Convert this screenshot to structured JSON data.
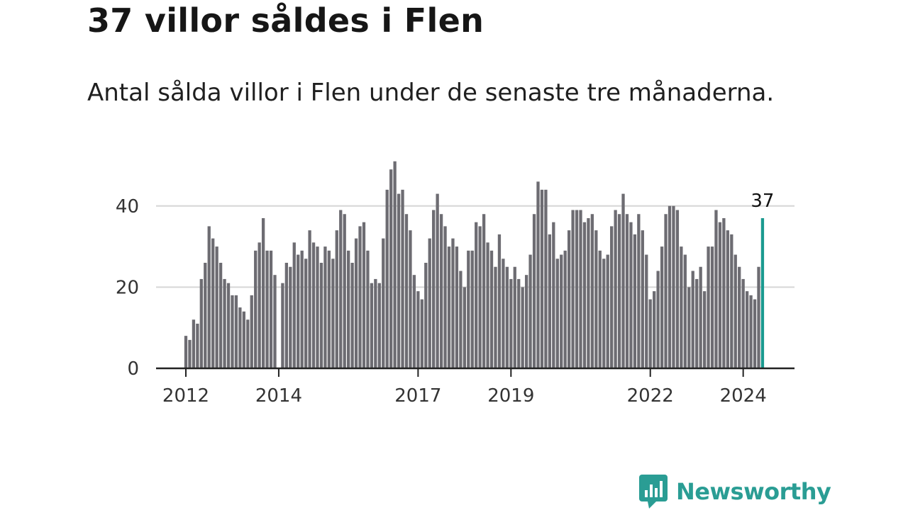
{
  "title": "37 villor såldes i Flen",
  "subtitle": "Antal sålda villor i Flen under de senaste tre månaderna.",
  "brand": {
    "name": "Newsworthy",
    "color": "#2a9d94"
  },
  "colors": {
    "bar": "#6d6c72",
    "highlight": "#1b9a90",
    "grid": "#d6d6d6",
    "axis": "#222222"
  },
  "chart_data": {
    "type": "bar",
    "title": "37 villor såldes i Flen",
    "xlabel": "",
    "ylabel": "",
    "ylim": [
      0,
      52
    ],
    "yticks": [
      0,
      20,
      40
    ],
    "grid": true,
    "x_start": "2012-01",
    "xticks": [
      {
        "label": "2012",
        "index": 0
      },
      {
        "label": "2014",
        "index": 24
      },
      {
        "label": "2017",
        "index": 60
      },
      {
        "label": "2019",
        "index": 84
      },
      {
        "label": "2022",
        "index": 120
      },
      {
        "label": "2024",
        "index": 144
      }
    ],
    "values": [
      8,
      7,
      12,
      11,
      22,
      26,
      35,
      32,
      30,
      26,
      22,
      21,
      18,
      18,
      15,
      14,
      12,
      18,
      29,
      31,
      37,
      29,
      29,
      23,
      null,
      21,
      26,
      25,
      31,
      28,
      29,
      27,
      34,
      31,
      30,
      26,
      30,
      29,
      27,
      34,
      39,
      38,
      29,
      26,
      32,
      35,
      36,
      29,
      21,
      22,
      21,
      32,
      44,
      49,
      51,
      43,
      44,
      38,
      34,
      23,
      19,
      17,
      26,
      32,
      39,
      43,
      38,
      35,
      30,
      32,
      30,
      24,
      20,
      29,
      29,
      36,
      35,
      38,
      31,
      29,
      25,
      33,
      27,
      25,
      22,
      25,
      22,
      20,
      23,
      28,
      38,
      46,
      44,
      44,
      33,
      36,
      27,
      28,
      29,
      34,
      39,
      39,
      39,
      36,
      37,
      38,
      34,
      29,
      27,
      28,
      35,
      39,
      38,
      43,
      38,
      36,
      33,
      38,
      34,
      28,
      17,
      19,
      24,
      30,
      38,
      40,
      40,
      39,
      30,
      28,
      20,
      24,
      22,
      25,
      19,
      30,
      30,
      39,
      36,
      37,
      34,
      33,
      28,
      25,
      22,
      19,
      18,
      17,
      25,
      37
    ],
    "highlight_last": true,
    "last_label": "37"
  }
}
